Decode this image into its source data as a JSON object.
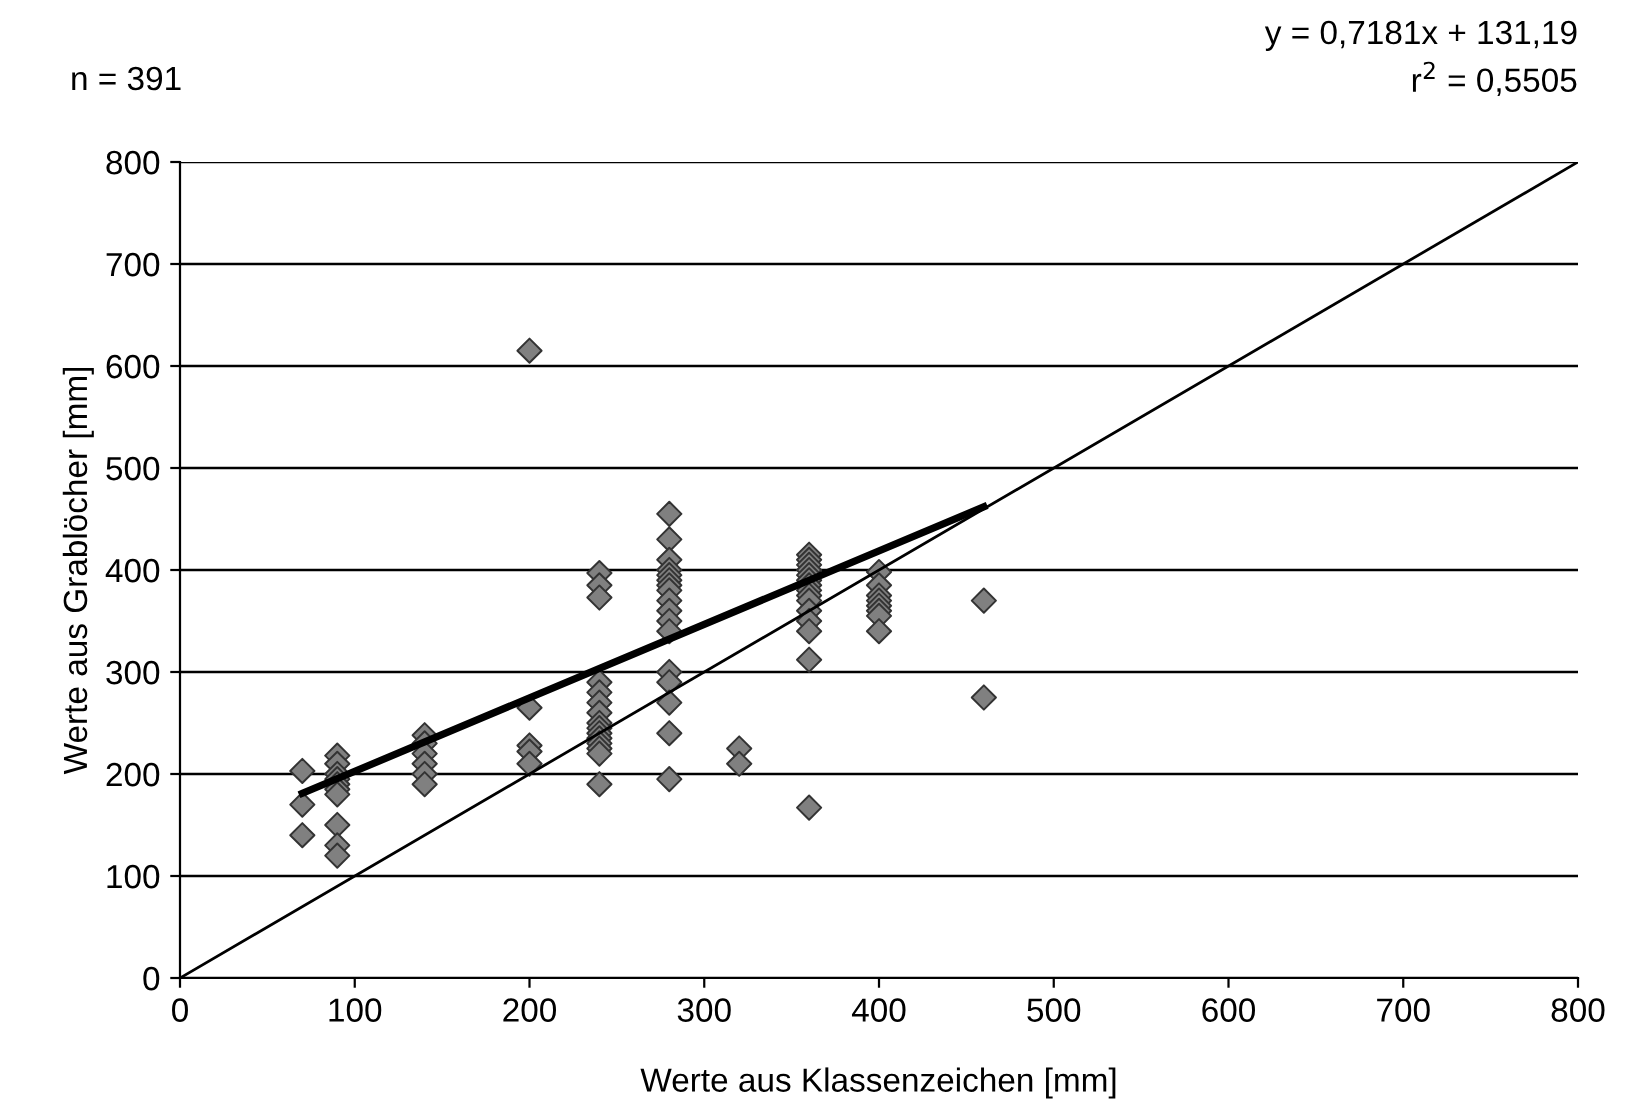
{
  "chart_data": {
    "type": "scatter",
    "xlabel": "Werte aus Klassenzeichen [mm]",
    "ylabel": "Werte aus Grablöcher [mm]",
    "xlim": [
      0,
      800
    ],
    "ylim": [
      0,
      800
    ],
    "xticks": [
      0,
      100,
      200,
      300,
      400,
      500,
      600,
      700,
      800
    ],
    "yticks": [
      0,
      100,
      200,
      300,
      400,
      500,
      600,
      700,
      800
    ],
    "grid": "y",
    "annotations": [
      "n = 391",
      "y = 0,7181x + 131,19",
      "r$^{2}$ = 0,5505"
    ],
    "series": [
      {
        "marker": "diamond",
        "color": "#808080",
        "x": [
          70,
          70,
          70,
          90,
          90,
          90,
          90,
          90,
          90,
          90,
          90,
          90,
          90,
          140,
          140,
          140,
          140,
          140,
          140,
          200,
          200,
          200,
          200,
          200,
          240,
          240,
          240,
          240,
          240,
          240,
          240,
          240,
          240,
          240,
          240,
          240,
          240,
          240,
          240,
          280,
          280,
          280,
          280,
          280,
          280,
          280,
          280,
          280,
          280,
          280,
          280,
          280,
          280,
          280,
          280,
          280,
          320,
          320,
          360,
          360,
          360,
          360,
          360,
          360,
          360,
          360,
          360,
          360,
          360,
          360,
          360,
          360,
          360,
          400,
          400,
          400,
          400,
          400,
          400,
          400,
          400,
          460,
          460
        ],
        "values": [
          203,
          170,
          140,
          218,
          210,
          200,
          195,
          190,
          185,
          180,
          150,
          130,
          120,
          238,
          230,
          220,
          210,
          200,
          190,
          615,
          265,
          228,
          222,
          210,
          397,
          385,
          373,
          290,
          280,
          270,
          260,
          250,
          245,
          240,
          235,
          230,
          225,
          220,
          190,
          455,
          430,
          410,
          400,
          395,
          390,
          385,
          380,
          370,
          360,
          350,
          340,
          300,
          290,
          270,
          240,
          195,
          225,
          210,
          415,
          410,
          405,
          400,
          395,
          390,
          385,
          380,
          375,
          370,
          360,
          350,
          340,
          312,
          167,
          398,
          385,
          375,
          370,
          365,
          360,
          355,
          340,
          370,
          275
        ]
      },
      {
        "type": "line",
        "color": "#000000",
        "x": [
          70,
          460
        ],
        "values": [
          181,
          462
        ],
        "marker": "none"
      },
      {
        "type": "line",
        "color": "#000000",
        "x": [
          0,
          800
        ],
        "values": [
          0,
          800
        ],
        "marker": "none"
      }
    ]
  }
}
